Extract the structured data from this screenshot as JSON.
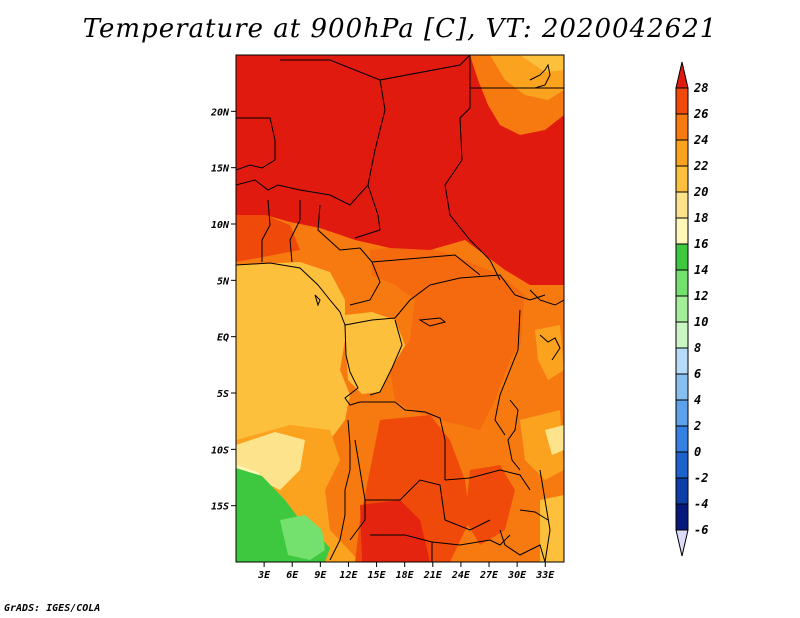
{
  "title": "Temperature at 900hPa [C], VT: 2020042621",
  "footer": "GrADS: IGES/COLA",
  "map": {
    "lat_labels": [
      "20N",
      "15N",
      "10N",
      "5N",
      "EQ",
      "5S",
      "10S",
      "15S"
    ],
    "lat_values": [
      20,
      15,
      10,
      5,
      0,
      -5,
      -10,
      -15
    ],
    "lon_labels": [
      "3E",
      "6E",
      "9E",
      "12E",
      "15E",
      "18E",
      "21E",
      "24E",
      "27E",
      "30E",
      "33E"
    ],
    "lon_values": [
      3,
      6,
      9,
      12,
      15,
      18,
      21,
      24,
      27,
      30,
      33
    ],
    "lon_range": [
      0,
      35
    ],
    "lat_range": [
      -20,
      25
    ]
  },
  "colorbar": {
    "labels": [
      "28",
      "26",
      "24",
      "22",
      "20",
      "18",
      "16",
      "14",
      "12",
      "10",
      "8",
      "6",
      "4",
      "2",
      "0",
      "-2",
      "-4",
      "-6"
    ],
    "colors": [
      "#e11a0f",
      "#f04a0b",
      "#f77a11",
      "#fba21f",
      "#fdc03d",
      "#fde48c",
      "#fff6b8",
      "#3ec83f",
      "#74e06e",
      "#a4ee9b",
      "#caf6c4",
      "#b7dcf8",
      "#87bff1",
      "#5ca1e9",
      "#3580e0",
      "#1d61cc",
      "#0e3fa8",
      "#06187a",
      "#dcdcfa"
    ]
  }
}
